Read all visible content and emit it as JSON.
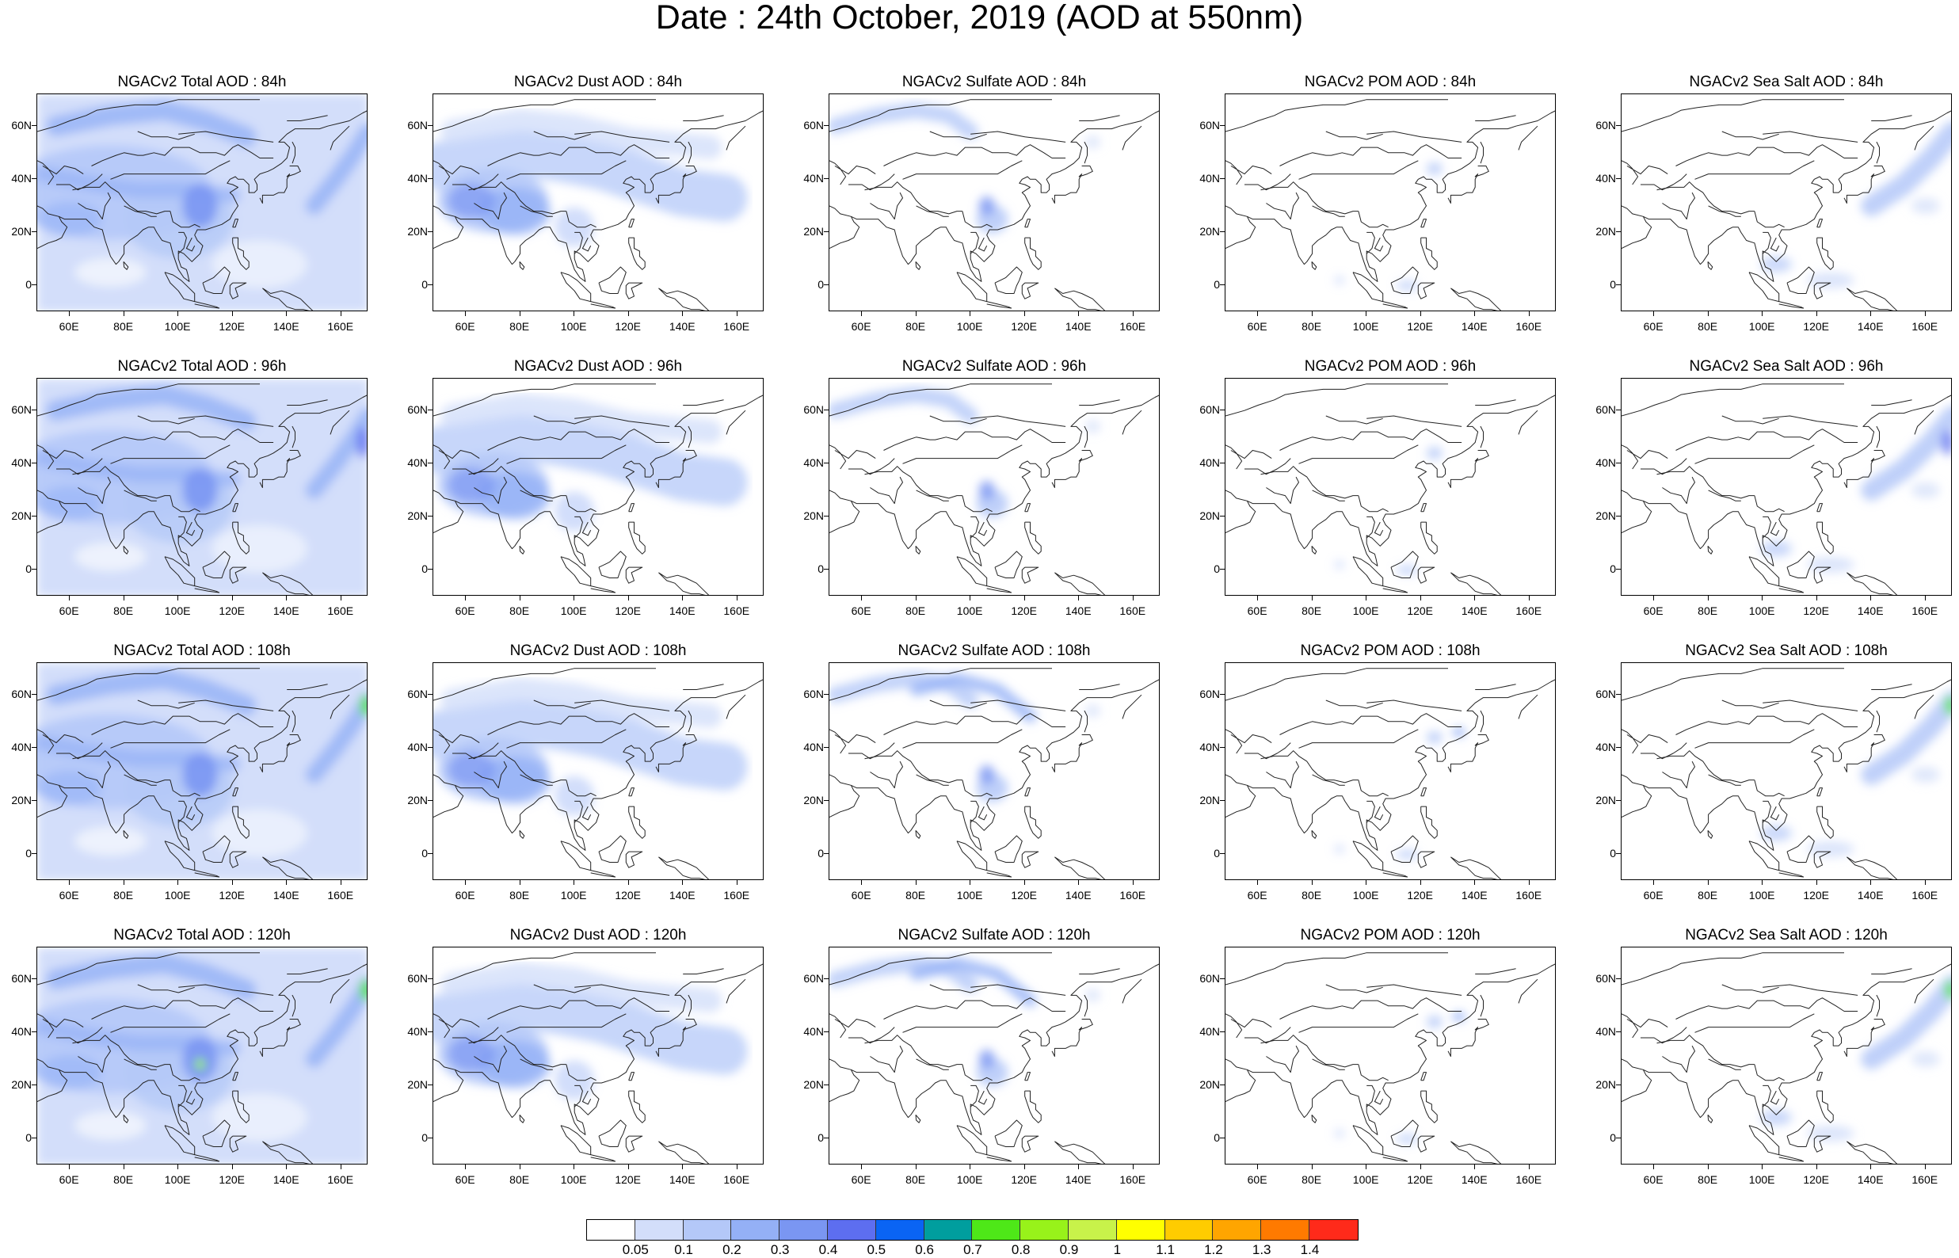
{
  "title": "Date : 24th October, 2019 (AOD at 550nm)",
  "lat_labels": [
    "60N",
    "40N",
    "20N",
    "0"
  ],
  "lon_labels": [
    "60E",
    "80E",
    "100E",
    "120E",
    "140E",
    "160E"
  ],
  "panels": [
    {
      "title": "NGACv2 Total AOD : 84h",
      "species": "total",
      "lead": "84h"
    },
    {
      "title": "NGACv2 Dust AOD : 84h",
      "species": "dust",
      "lead": "84h"
    },
    {
      "title": "NGACv2 Sulfate AOD : 84h",
      "species": "sulfate",
      "lead": "84h"
    },
    {
      "title": "NGACv2 POM AOD : 84h",
      "species": "pom",
      "lead": "84h"
    },
    {
      "title": "NGACv2 Sea Salt AOD : 84h",
      "species": "seasalt",
      "lead": "84h"
    },
    {
      "title": "NGACv2 Total AOD : 96h",
      "species": "total",
      "lead": "96h"
    },
    {
      "title": "NGACv2 Dust AOD : 96h",
      "species": "dust",
      "lead": "96h"
    },
    {
      "title": "NGACv2 Sulfate AOD : 96h",
      "species": "sulfate",
      "lead": "96h"
    },
    {
      "title": "NGACv2 POM AOD : 96h",
      "species": "pom",
      "lead": "96h"
    },
    {
      "title": "NGACv2 Sea Salt AOD : 96h",
      "species": "seasalt",
      "lead": "96h"
    },
    {
      "title": "NGACv2 Total AOD : 108h",
      "species": "total",
      "lead": "108h"
    },
    {
      "title": "NGACv2 Dust AOD : 108h",
      "species": "dust",
      "lead": "108h"
    },
    {
      "title": "NGACv2 Sulfate AOD : 108h",
      "species": "sulfate",
      "lead": "108h"
    },
    {
      "title": "NGACv2 POM AOD : 108h",
      "species": "pom",
      "lead": "108h"
    },
    {
      "title": "NGACv2 Sea Salt AOD : 108h",
      "species": "seasalt",
      "lead": "108h"
    },
    {
      "title": "NGACv2 Total AOD : 120h",
      "species": "total",
      "lead": "120h"
    },
    {
      "title": "NGACv2 Dust AOD : 120h",
      "species": "dust",
      "lead": "120h"
    },
    {
      "title": "NGACv2 Sulfate AOD : 120h",
      "species": "sulfate",
      "lead": "120h"
    },
    {
      "title": "NGACv2 POM AOD : 120h",
      "species": "pom",
      "lead": "120h"
    },
    {
      "title": "NGACv2 Sea Salt  AOD : 120h",
      "species": "seasalt",
      "lead": "120h"
    }
  ],
  "colorbar": {
    "colors": [
      "#ffffff",
      "#d3defa",
      "#b4c8f8",
      "#94b0f6",
      "#7a96f2",
      "#5d6ef0",
      "#0a64f4",
      "#009e9e",
      "#4ee818",
      "#98f21a",
      "#c8f24a",
      "#ffff00",
      "#ffcc00",
      "#ffa500",
      "#ff7a00",
      "#ff2a1a"
    ],
    "labels": [
      "0.05",
      "0.1",
      "0.2",
      "0.3",
      "0.4",
      "0.5",
      "0.6",
      "0.7",
      "0.8",
      "0.9",
      "1",
      "1.1",
      "1.2",
      "1.3",
      "1.4"
    ]
  }
}
